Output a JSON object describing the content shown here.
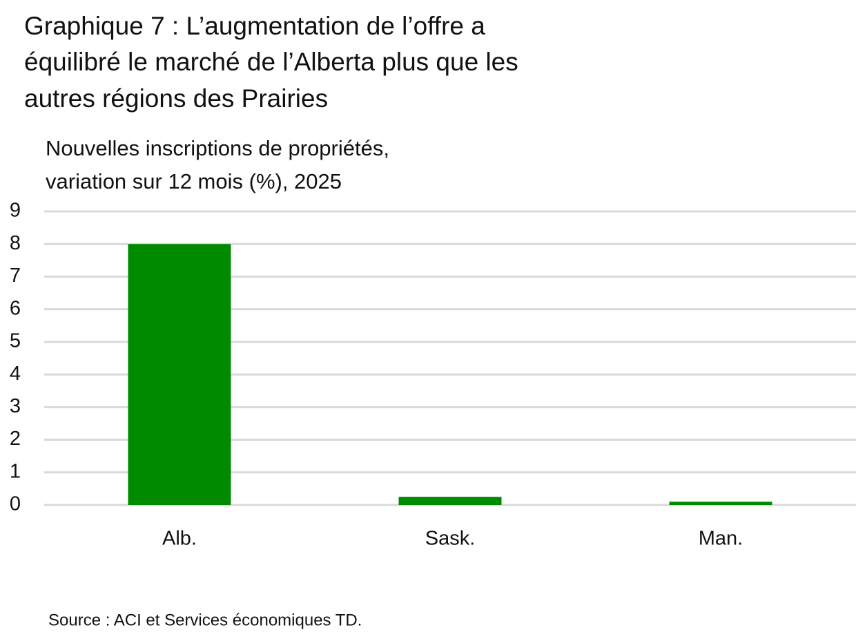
{
  "chart_data": {
    "type": "bar",
    "title": [
      "Graphique 7 : L’augmentation de l’offre a",
      "équilibré le marché de l’Alberta plus que les",
      "autres régions des Prairies"
    ],
    "subtitle": [
      "Nouvelles inscriptions de propriétés,",
      "variation sur 12 mois (%), 2025"
    ],
    "categories": [
      "Alb.",
      "Sask.",
      "Man."
    ],
    "values": [
      8.0,
      0.25,
      0.1
    ],
    "color": "#008a00",
    "ylim": [
      0,
      9
    ],
    "yticks": [
      0,
      1,
      2,
      3,
      4,
      5,
      6,
      7,
      8,
      9
    ],
    "grid": true,
    "source": "Source : ACI et Services économiques TD."
  }
}
